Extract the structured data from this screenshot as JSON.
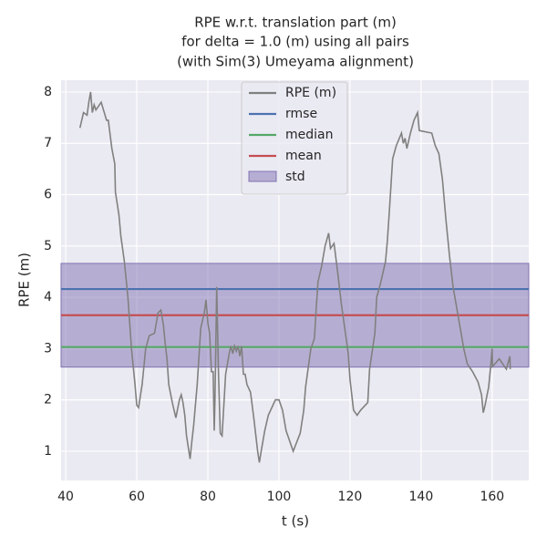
{
  "chart_data": {
    "type": "line",
    "title": [
      "RPE w.r.t. translation part (m)",
      "for delta = 1.0 (m) using all pairs",
      "(with Sim(3) Umeyama alignment)"
    ],
    "xlabel": "t (s)",
    "ylabel": "RPE (m)",
    "xlim": [
      38.7,
      170.3
    ],
    "ylim": [
      0.43,
      8.23
    ],
    "xticks": [
      40,
      60,
      80,
      100,
      120,
      140,
      160
    ],
    "yticks": [
      1,
      2,
      3,
      4,
      5,
      6,
      7,
      8
    ],
    "grid": true,
    "legend": "upper center",
    "series": [
      {
        "name": "RPE (m)",
        "color": "#808080",
        "x": [
          44,
          45,
          46,
          46.5,
          47,
          47.5,
          48,
          48.5,
          50,
          51.5,
          52,
          53,
          53.8,
          54,
          55,
          55.5,
          56.5,
          57.5,
          58.5,
          59.5,
          60,
          60.5,
          61.5,
          62.5,
          63.5,
          65,
          66,
          66.8,
          67.5,
          68,
          68.5,
          69,
          70,
          71,
          72,
          72.5,
          73,
          73.5,
          74,
          75,
          75.5,
          76,
          77,
          78,
          79,
          79.5,
          80,
          80.5,
          81,
          81.5,
          81.8,
          82,
          82.5,
          83,
          83.5,
          84,
          85,
          86,
          86.5,
          87,
          87.5,
          88,
          88.5,
          89,
          89.5,
          90,
          90.5,
          91,
          92,
          93,
          94,
          94.5,
          95,
          96,
          97,
          99,
          100,
          101,
          102,
          104,
          106,
          107,
          107.5,
          108,
          109,
          110,
          110.5,
          111,
          112,
          113,
          114,
          114.5,
          115.5,
          116.5,
          117.5,
          118.5,
          119.5,
          120,
          121,
          122,
          123,
          125,
          125.5,
          127,
          127.5,
          128.5,
          130,
          130.5,
          131,
          132,
          133,
          134.5,
          135,
          135.5,
          136,
          137,
          138,
          139,
          139.5,
          143,
          144,
          145,
          146,
          147,
          148,
          149,
          150,
          151,
          152,
          153,
          154.5,
          156,
          157,
          157.5,
          158,
          159,
          159.5,
          160,
          160.1,
          162,
          164,
          165,
          165.1
        ],
        "values": [
          7.3,
          7.6,
          7.55,
          7.8,
          8.0,
          7.6,
          7.75,
          7.65,
          7.8,
          7.45,
          7.45,
          6.9,
          6.6,
          6.05,
          5.6,
          5.2,
          4.7,
          4.0,
          3.0,
          2.3,
          1.9,
          1.85,
          2.3,
          3.0,
          3.25,
          3.3,
          3.7,
          3.75,
          3.45,
          3.1,
          2.8,
          2.3,
          1.95,
          1.65,
          2.0,
          2.1,
          1.95,
          1.7,
          1.3,
          0.85,
          1.2,
          1.5,
          2.3,
          3.4,
          3.7,
          3.95,
          3.5,
          3.3,
          2.55,
          2.55,
          1.4,
          2.0,
          4.2,
          2.5,
          1.35,
          1.3,
          2.5,
          2.9,
          3.05,
          2.9,
          3.05,
          2.95,
          3.05,
          2.85,
          3.05,
          2.5,
          2.5,
          2.3,
          2.15,
          1.6,
          1.0,
          0.78,
          1.0,
          1.4,
          1.7,
          2.0,
          2.0,
          1.8,
          1.4,
          1.0,
          1.35,
          1.8,
          2.25,
          2.5,
          3.0,
          3.2,
          3.8,
          4.3,
          4.6,
          5.0,
          5.25,
          4.95,
          5.05,
          4.5,
          3.9,
          3.4,
          2.9,
          2.4,
          1.8,
          1.7,
          1.8,
          1.95,
          2.6,
          3.3,
          4.0,
          4.25,
          4.7,
          5.1,
          5.6,
          6.7,
          6.95,
          7.2,
          7.0,
          7.1,
          6.9,
          7.2,
          7.45,
          7.6,
          7.25,
          7.2,
          6.95,
          6.8,
          6.3,
          5.5,
          4.8,
          4.2,
          3.8,
          3.4,
          3.0,
          2.7,
          2.55,
          2.35,
          2.1,
          1.75,
          1.9,
          2.25,
          2.6,
          3.0,
          2.65,
          2.8,
          2.6,
          2.85,
          2.6
        ]
      }
    ],
    "stats": [
      {
        "name": "rmse",
        "color": "#4c72b0",
        "value": 4.16
      },
      {
        "name": "median",
        "color": "#55a868",
        "value": 3.03
      },
      {
        "name": "mean",
        "color": "#c44e52",
        "value": 3.65
      }
    ],
    "std": {
      "name": "std",
      "color": "#8172b2",
      "value": 1.01
    }
  }
}
